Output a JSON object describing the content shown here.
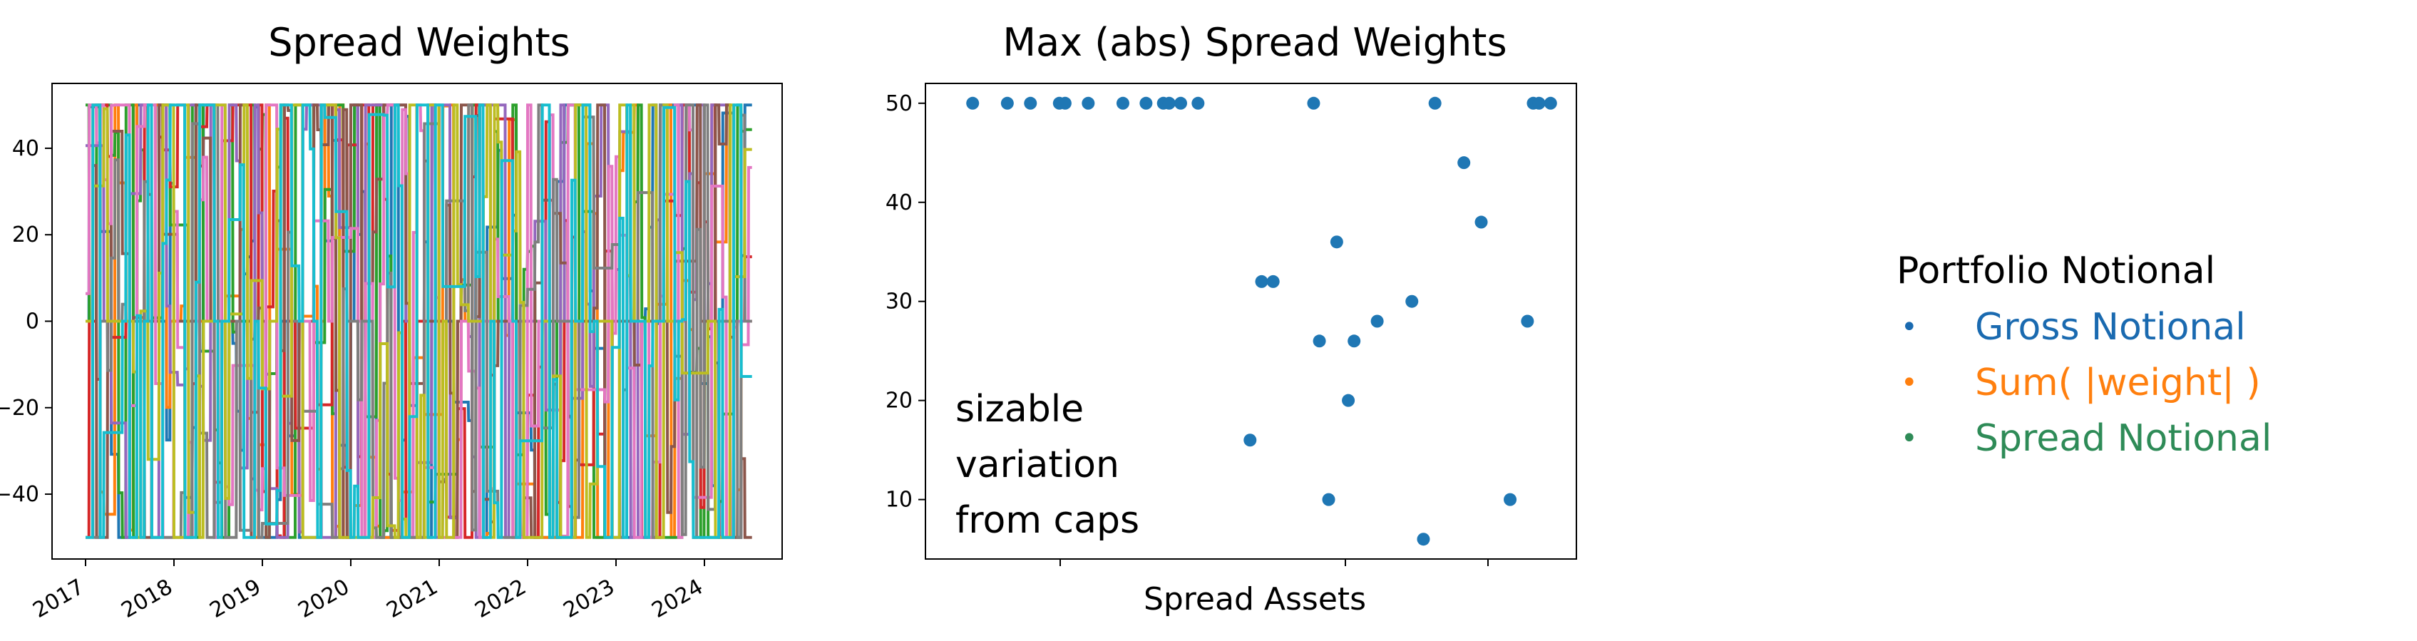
{
  "chart_data": [
    {
      "type": "line",
      "title": "Spread Weights",
      "xlabel": "",
      "ylabel": "",
      "x_range": [
        "2017-01-01",
        "2024-07-01"
      ],
      "ylim": [
        -55,
        55
      ],
      "x_tick_labels": [
        "2017",
        "2018",
        "2019",
        "2020",
        "2021",
        "2022",
        "2023",
        "2024"
      ],
      "y_tick_labels": [
        "−40",
        "−20",
        "0",
        "20",
        "40"
      ],
      "y_ticks": [
        -40,
        -20,
        0,
        20,
        40
      ],
      "series_colors": [
        "#1f77b4",
        "#ff7f0e",
        "#2ca02c",
        "#d62728",
        "#9467bd",
        "#8c564b",
        "#e377c2",
        "#7f7f7f",
        "#bcbd22",
        "#17becf"
      ],
      "weight_cap": 50,
      "grid": false,
      "note": ""
    },
    {
      "type": "scatter",
      "title": "Max (abs) Spread Weights",
      "xlabel": "Spread Assets",
      "ylabel": "",
      "ylim": [
        4,
        52
      ],
      "y_ticks": [
        10,
        20,
        30,
        40,
        50
      ],
      "y_tick_labels": [
        "10",
        "20",
        "30",
        "40",
        "50"
      ],
      "color": "#1f77b4",
      "x": [
        1,
        4,
        6,
        8.5,
        9,
        11,
        14,
        16,
        17.5,
        18,
        19,
        20.5,
        25,
        26,
        27,
        30.5,
        31,
        31.8,
        32.5,
        33.5,
        34,
        36,
        39,
        40,
        41,
        43.5,
        45,
        47.5,
        49,
        49.5,
        50,
        51
      ],
      "y": [
        50,
        50,
        50,
        50,
        50,
        50,
        50,
        50,
        50,
        50,
        50,
        50,
        16,
        32,
        32,
        50,
        26,
        10,
        36,
        20,
        26,
        28,
        30,
        6,
        50,
        44,
        38,
        10,
        28,
        50,
        50,
        50
      ],
      "grid": false,
      "annotation": [
        "sizable",
        "variation",
        "from caps"
      ]
    }
  ],
  "legend": {
    "heading": "Portfolio Notional",
    "items": [
      {
        "label": "Gross Notional",
        "color": "#1a6ab0",
        "bullet": "•"
      },
      {
        "label": "Sum( |weight| )",
        "color": "#ff7f0e",
        "bullet": "•"
      },
      {
        "label": "Spread Notional",
        "color": "#2e8b57",
        "bullet": "•"
      }
    ]
  }
}
